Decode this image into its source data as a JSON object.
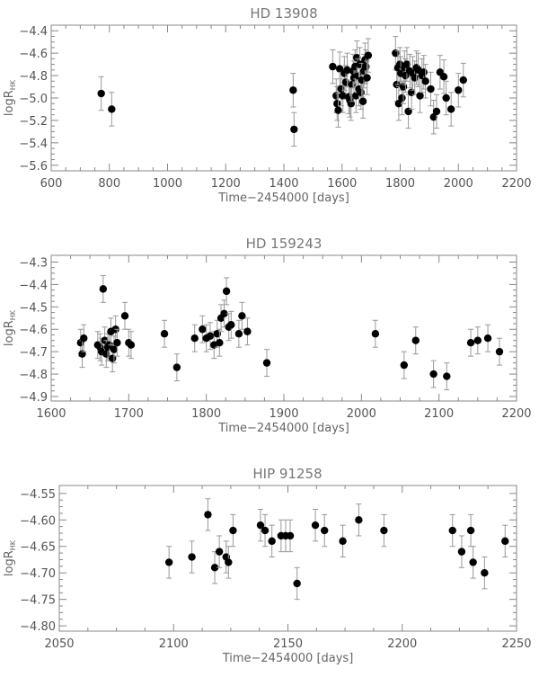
{
  "chart_data": [
    {
      "type": "scatter",
      "title": "HD 13908",
      "xlabel": "Time−2454000 [days]",
      "ylabel": "logR′HK",
      "ylabel_main": "logR",
      "ylabel_sub": "HK",
      "xlim": [
        600,
        2200
      ],
      "ylim": [
        -5.65,
        -4.35
      ],
      "xticks": [
        600,
        800,
        1000,
        1200,
        1400,
        1600,
        1800,
        2000,
        2200
      ],
      "yticks": [
        -4.4,
        -4.6,
        -4.8,
        -5.0,
        -5.2,
        -5.4,
        -5.6
      ],
      "yticklabels": [
        "−4.4",
        "−4.6",
        "−4.8",
        "−5.0",
        "−5.2",
        "−5.4",
        "−5.6"
      ],
      "error": 0.15,
      "points": [
        [
          772,
          -4.96
        ],
        [
          808,
          -5.1
        ],
        [
          1432,
          -4.93
        ],
        [
          1435,
          -5.28
        ],
        [
          1568,
          -4.72
        ],
        [
          1580,
          -4.98
        ],
        [
          1583,
          -5.05
        ],
        [
          1587,
          -5.11
        ],
        [
          1592,
          -4.74
        ],
        [
          1597,
          -4.92
        ],
        [
          1603,
          -4.98
        ],
        [
          1608,
          -4.78
        ],
        [
          1613,
          -4.86
        ],
        [
          1618,
          -4.75
        ],
        [
          1623,
          -4.99
        ],
        [
          1627,
          -5.02
        ],
        [
          1631,
          -5.05
        ],
        [
          1634,
          -4.88
        ],
        [
          1638,
          -4.76
        ],
        [
          1641,
          -4.82
        ],
        [
          1645,
          -4.72
        ],
        [
          1648,
          -4.98
        ],
        [
          1651,
          -4.64
        ],
        [
          1654,
          -4.8
        ],
        [
          1658,
          -4.92
        ],
        [
          1661,
          -4.7
        ],
        [
          1665,
          -4.95
        ],
        [
          1668,
          -4.84
        ],
        [
          1672,
          -5.03
        ],
        [
          1675,
          -4.76
        ],
        [
          1679,
          -4.66
        ],
        [
          1682,
          -4.72
        ],
        [
          1686,
          -4.82
        ],
        [
          1690,
          -4.62
        ],
        [
          1784,
          -4.6
        ],
        [
          1788,
          -4.88
        ],
        [
          1792,
          -4.73
        ],
        [
          1795,
          -5.05
        ],
        [
          1799,
          -4.7
        ],
        [
          1802,
          -4.78
        ],
        [
          1806,
          -5.0
        ],
        [
          1811,
          -4.9
        ],
        [
          1815,
          -4.73
        ],
        [
          1818,
          -4.8
        ],
        [
          1823,
          -4.7
        ],
        [
          1828,
          -5.12
        ],
        [
          1833,
          -4.76
        ],
        [
          1839,
          -4.95
        ],
        [
          1843,
          -4.78
        ],
        [
          1850,
          -4.82
        ],
        [
          1856,
          -4.73
        ],
        [
          1862,
          -4.75
        ],
        [
          1868,
          -4.98
        ],
        [
          1875,
          -4.8
        ],
        [
          1881,
          -4.77
        ],
        [
          1887,
          -4.85
        ],
        [
          1905,
          -4.92
        ],
        [
          1915,
          -5.17
        ],
        [
          1925,
          -5.12
        ],
        [
          1937,
          -4.77
        ],
        [
          1950,
          -4.81
        ],
        [
          1958,
          -5.0
        ],
        [
          1975,
          -5.1
        ],
        [
          2000,
          -4.93
        ],
        [
          2017,
          -4.84
        ]
      ]
    },
    {
      "type": "scatter",
      "title": "HD 159243",
      "xlabel": "Time−2454000 [days]",
      "ylabel": "logR′HK",
      "ylabel_main": "logR",
      "ylabel_sub": "HK",
      "xlim": [
        1600,
        2200
      ],
      "ylim": [
        -4.92,
        -4.27
      ],
      "xticks": [
        1600,
        1700,
        1800,
        1900,
        2000,
        2100,
        2200
      ],
      "yticks": [
        -4.3,
        -4.4,
        -4.5,
        -4.6,
        -4.7,
        -4.8,
        -4.9
      ],
      "yticklabels": [
        "−4.3",
        "−4.4",
        "−4.5",
        "−4.6",
        "−4.7",
        "−4.8",
        "−4.9"
      ],
      "error": 0.06,
      "points": [
        [
          1638,
          -4.66
        ],
        [
          1640,
          -4.71
        ],
        [
          1642,
          -4.64
        ],
        [
          1660,
          -4.67
        ],
        [
          1663,
          -4.68
        ],
        [
          1665,
          -4.7
        ],
        [
          1667,
          -4.42
        ],
        [
          1669,
          -4.65
        ],
        [
          1671,
          -4.71
        ],
        [
          1673,
          -4.68
        ],
        [
          1675,
          -4.67
        ],
        [
          1677,
          -4.61
        ],
        [
          1679,
          -4.73
        ],
        [
          1681,
          -4.69
        ],
        [
          1683,
          -4.6
        ],
        [
          1685,
          -4.66
        ],
        [
          1695,
          -4.54
        ],
        [
          1700,
          -4.66
        ],
        [
          1703,
          -4.67
        ],
        [
          1746,
          -4.62
        ],
        [
          1762,
          -4.77
        ],
        [
          1785,
          -4.64
        ],
        [
          1795,
          -4.6
        ],
        [
          1800,
          -4.64
        ],
        [
          1805,
          -4.63
        ],
        [
          1810,
          -4.67
        ],
        [
          1814,
          -4.62
        ],
        [
          1817,
          -4.66
        ],
        [
          1819,
          -4.55
        ],
        [
          1823,
          -4.53
        ],
        [
          1826,
          -4.43
        ],
        [
          1829,
          -4.59
        ],
        [
          1832,
          -4.58
        ],
        [
          1842,
          -4.62
        ],
        [
          1846,
          -4.54
        ],
        [
          1853,
          -4.61
        ],
        [
          1878,
          -4.75
        ],
        [
          2018,
          -4.62
        ],
        [
          2055,
          -4.76
        ],
        [
          2070,
          -4.65
        ],
        [
          2093,
          -4.8
        ],
        [
          2110,
          -4.81
        ],
        [
          2141,
          -4.66
        ],
        [
          2150,
          -4.65
        ],
        [
          2163,
          -4.64
        ],
        [
          2178,
          -4.7
        ]
      ]
    },
    {
      "type": "scatter",
      "title": "HIP 91258",
      "xlabel": "Time−2454000 [days]",
      "ylabel": "logR′HK",
      "ylabel_main": "logR",
      "ylabel_sub": "HK",
      "xlim": [
        2050,
        2250
      ],
      "ylim": [
        -4.81,
        -4.535
      ],
      "xticks": [
        2050,
        2100,
        2150,
        2200,
        2250
      ],
      "yticks": [
        -4.55,
        -4.6,
        -4.65,
        -4.7,
        -4.75,
        -4.8
      ],
      "yticklabels": [
        "−4.55",
        "−4.60",
        "−4.65",
        "−4.70",
        "−4.75",
        "−4.80"
      ],
      "error": 0.03,
      "points": [
        [
          2098,
          -4.68
        ],
        [
          2108,
          -4.67
        ],
        [
          2115,
          -4.59
        ],
        [
          2118,
          -4.69
        ],
        [
          2120,
          -4.66
        ],
        [
          2123,
          -4.67
        ],
        [
          2124,
          -4.68
        ],
        [
          2126,
          -4.62
        ],
        [
          2138,
          -4.61
        ],
        [
          2140,
          -4.62
        ],
        [
          2143,
          -4.64
        ],
        [
          2147,
          -4.63
        ],
        [
          2149,
          -4.63
        ],
        [
          2151,
          -4.63
        ],
        [
          2154,
          -4.72
        ],
        [
          2162,
          -4.61
        ],
        [
          2166,
          -4.62
        ],
        [
          2174,
          -4.64
        ],
        [
          2181,
          -4.6
        ],
        [
          2192,
          -4.62
        ],
        [
          2222,
          -4.62
        ],
        [
          2226,
          -4.66
        ],
        [
          2230,
          -4.62
        ],
        [
          2231,
          -4.68
        ],
        [
          2236,
          -4.7
        ],
        [
          2245,
          -4.64
        ]
      ]
    }
  ]
}
